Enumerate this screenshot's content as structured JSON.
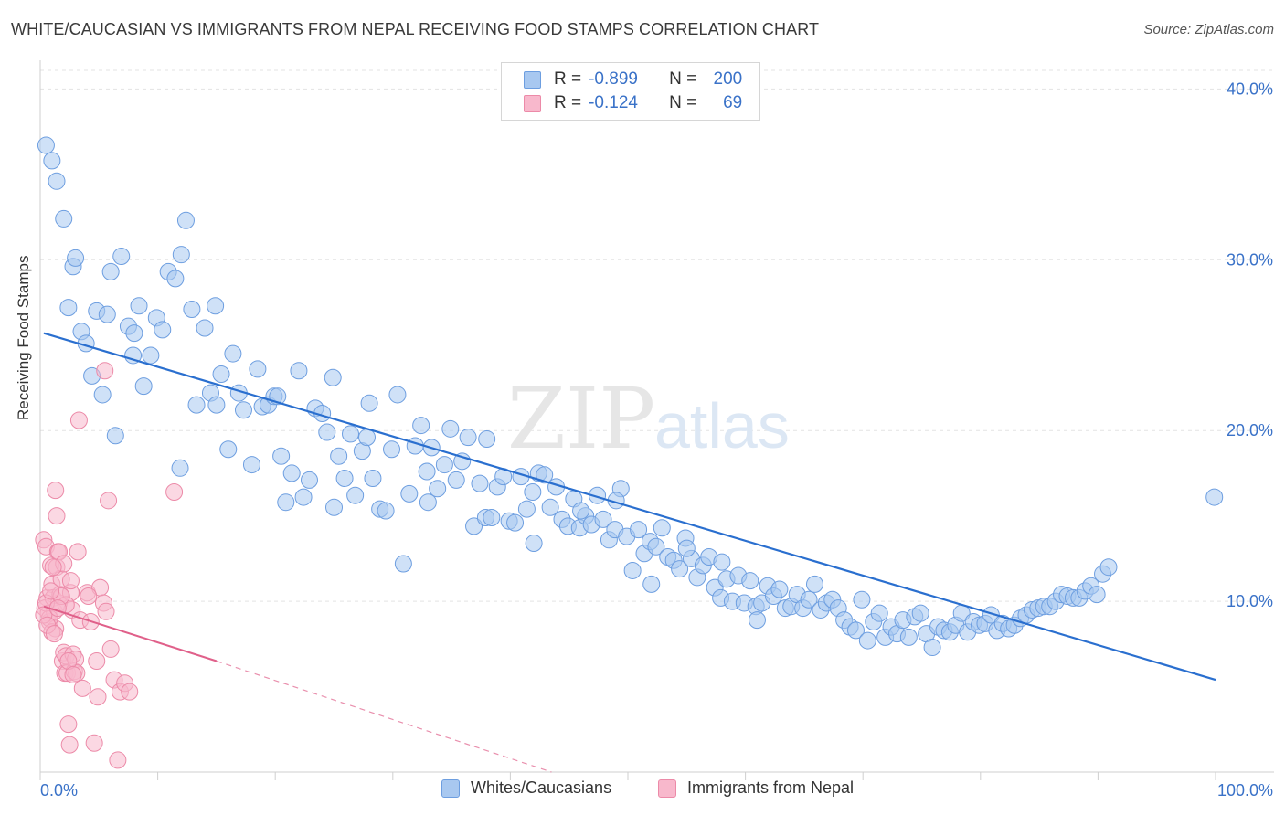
{
  "title": "WHITE/CAUCASIAN VS IMMIGRANTS FROM NEPAL RECEIVING FOOD STAMPS CORRELATION CHART",
  "source": "Source: ZipAtlas.com",
  "watermark": {
    "zip": "ZIP",
    "atlas": "atlas"
  },
  "colors": {
    "blue_fill": "#a8c8f0",
    "blue_stroke": "#6d9ee0",
    "blue_line": "#2a6fcf",
    "pink_fill": "#f8b8cc",
    "pink_stroke": "#ec8aa8",
    "pink_line": "#e0608a",
    "axis_text": "#3a72c8",
    "grid": "#e3e3e3"
  },
  "legend": {
    "rows": [
      {
        "r_label": "R =",
        "r_value": "-0.899",
        "n_label": "N =",
        "n_value": "200",
        "color": "#a8c8f0"
      },
      {
        "r_label": "R =",
        "r_value": "-0.124",
        "n_label": "N =",
        "n_value": "69",
        "color": "#f8b8cc"
      }
    ]
  },
  "bottom_legend": {
    "series1": "Whites/Caucasians",
    "series2": "Immigrants from Nepal"
  },
  "chart_data": {
    "type": "scatter",
    "ylabel": "Receiving Food Stamps",
    "xlabel": "",
    "xlim": [
      0,
      100
    ],
    "ylim": [
      0,
      42
    ],
    "x_tick_labels": {
      "0": "0.0%",
      "100": "100.0%"
    },
    "y_ticks": [
      10,
      20,
      30,
      40
    ],
    "y_tick_labels": [
      "10.0%",
      "20.0%",
      "30.0%",
      "40.0%"
    ],
    "grid": "horizontal dashed",
    "series": [
      {
        "name": "Whites/Caucasians",
        "trend": {
          "x": [
            0,
            100
          ],
          "y": [
            25.7,
            5.4
          ],
          "style": "solid"
        },
        "points": [
          [
            0.5,
            36.7
          ],
          [
            1,
            35.8
          ],
          [
            1.4,
            34.6
          ],
          [
            2,
            32.4
          ],
          [
            2.8,
            29.6
          ],
          [
            2.4,
            27.2
          ],
          [
            3.5,
            25.8
          ],
          [
            3.9,
            25.1
          ],
          [
            4.4,
            23.2
          ],
          [
            4.8,
            27.0
          ],
          [
            5.3,
            22.1
          ],
          [
            5.7,
            26.8
          ],
          [
            6.4,
            19.7
          ],
          [
            6.9,
            30.2
          ],
          [
            7.5,
            26.1
          ],
          [
            7.9,
            24.4
          ],
          [
            8.4,
            27.3
          ],
          [
            8.8,
            22.6
          ],
          [
            9.4,
            24.4
          ],
          [
            9.9,
            26.6
          ],
          [
            10.4,
            25.9
          ],
          [
            10.9,
            29.3
          ],
          [
            11.5,
            28.9
          ],
          [
            11.9,
            17.8
          ],
          [
            12.4,
            32.3
          ],
          [
            12.9,
            27.1
          ],
          [
            13.3,
            21.5
          ],
          [
            14.0,
            26.0
          ],
          [
            14.5,
            22.2
          ],
          [
            14.9,
            27.3
          ],
          [
            15.4,
            23.3
          ],
          [
            16.0,
            18.9
          ],
          [
            16.4,
            24.5
          ],
          [
            16.9,
            22.2
          ],
          [
            17.3,
            21.2
          ],
          [
            18.0,
            18.0
          ],
          [
            18.5,
            23.6
          ],
          [
            18.9,
            21.4
          ],
          [
            19.4,
            21.5
          ],
          [
            19.9,
            22.0
          ],
          [
            20.5,
            18.5
          ],
          [
            20.9,
            15.8
          ],
          [
            21.4,
            17.5
          ],
          [
            22.0,
            23.5
          ],
          [
            22.4,
            16.1
          ],
          [
            22.9,
            17.1
          ],
          [
            23.4,
            21.3
          ],
          [
            24.0,
            21.0
          ],
          [
            24.4,
            19.9
          ],
          [
            24.9,
            23.1
          ],
          [
            25.4,
            18.5
          ],
          [
            25.9,
            17.2
          ],
          [
            26.4,
            19.8
          ],
          [
            26.8,
            16.2
          ],
          [
            27.4,
            18.8
          ],
          [
            27.8,
            19.6
          ],
          [
            28.3,
            17.2
          ],
          [
            28.9,
            15.4
          ],
          [
            29.4,
            15.3
          ],
          [
            29.9,
            18.9
          ],
          [
            30.4,
            22.1
          ],
          [
            30.9,
            12.2
          ],
          [
            31.4,
            16.3
          ],
          [
            31.9,
            19.1
          ],
          [
            32.4,
            20.3
          ],
          [
            32.9,
            17.6
          ],
          [
            33.3,
            19.0
          ],
          [
            33.8,
            16.6
          ],
          [
            34.4,
            18.0
          ],
          [
            34.9,
            20.1
          ],
          [
            35.4,
            17.1
          ],
          [
            35.9,
            18.2
          ],
          [
            36.4,
            19.6
          ],
          [
            36.9,
            14.4
          ],
          [
            37.4,
            16.9
          ],
          [
            37.9,
            14.9
          ],
          [
            38.4,
            14.9
          ],
          [
            38.9,
            16.7
          ],
          [
            39.4,
            17.3
          ],
          [
            39.9,
            14.7
          ],
          [
            40.4,
            14.6
          ],
          [
            40.9,
            17.3
          ],
          [
            41.4,
            15.4
          ],
          [
            41.9,
            16.4
          ],
          [
            42.4,
            17.5
          ],
          [
            42.9,
            17.4
          ],
          [
            43.4,
            15.5
          ],
          [
            43.9,
            16.7
          ],
          [
            44.4,
            14.8
          ],
          [
            44.9,
            14.4
          ],
          [
            45.4,
            16.0
          ],
          [
            45.9,
            14.3
          ],
          [
            46.4,
            15.0
          ],
          [
            46.9,
            14.5
          ],
          [
            47.4,
            16.2
          ],
          [
            47.9,
            14.8
          ],
          [
            48.4,
            13.6
          ],
          [
            48.9,
            14.2
          ],
          [
            49.4,
            16.6
          ],
          [
            49.9,
            13.8
          ],
          [
            50.4,
            11.8
          ],
          [
            50.9,
            14.2
          ],
          [
            51.4,
            12.8
          ],
          [
            51.9,
            13.5
          ],
          [
            52.4,
            13.2
          ],
          [
            52.9,
            14.3
          ],
          [
            53.4,
            12.6
          ],
          [
            53.9,
            12.4
          ],
          [
            54.4,
            11.9
          ],
          [
            54.9,
            13.7
          ],
          [
            55.4,
            12.5
          ],
          [
            55.9,
            11.4
          ],
          [
            56.4,
            12.1
          ],
          [
            56.9,
            12.6
          ],
          [
            57.4,
            10.8
          ],
          [
            57.9,
            10.2
          ],
          [
            58.4,
            11.3
          ],
          [
            58.9,
            10.0
          ],
          [
            59.4,
            11.5
          ],
          [
            59.9,
            9.9
          ],
          [
            60.4,
            11.2
          ],
          [
            60.9,
            9.7
          ],
          [
            61.4,
            9.9
          ],
          [
            61.9,
            10.9
          ],
          [
            62.4,
            10.3
          ],
          [
            62.9,
            10.7
          ],
          [
            63.4,
            9.6
          ],
          [
            63.9,
            9.7
          ],
          [
            64.4,
            10.4
          ],
          [
            64.9,
            9.6
          ],
          [
            65.4,
            10.1
          ],
          [
            65.9,
            11.0
          ],
          [
            66.4,
            9.5
          ],
          [
            66.9,
            9.9
          ],
          [
            67.4,
            10.1
          ],
          [
            67.9,
            9.6
          ],
          [
            68.4,
            8.9
          ],
          [
            68.9,
            8.5
          ],
          [
            69.4,
            8.3
          ],
          [
            69.9,
            10.1
          ],
          [
            70.4,
            7.7
          ],
          [
            70.9,
            8.8
          ],
          [
            71.4,
            9.3
          ],
          [
            71.9,
            7.9
          ],
          [
            72.4,
            8.5
          ],
          [
            72.9,
            8.1
          ],
          [
            73.4,
            8.9
          ],
          [
            73.9,
            7.9
          ],
          [
            74.4,
            9.1
          ],
          [
            74.9,
            9.3
          ],
          [
            75.4,
            8.1
          ],
          [
            75.9,
            7.3
          ],
          [
            76.4,
            8.5
          ],
          [
            76.9,
            8.3
          ],
          [
            77.4,
            8.2
          ],
          [
            77.9,
            8.6
          ],
          [
            78.4,
            9.3
          ],
          [
            78.9,
            8.2
          ],
          [
            79.4,
            8.8
          ],
          [
            79.9,
            8.6
          ],
          [
            80.4,
            8.7
          ],
          [
            80.9,
            9.2
          ],
          [
            81.4,
            8.3
          ],
          [
            81.9,
            8.7
          ],
          [
            82.4,
            8.4
          ],
          [
            82.9,
            8.6
          ],
          [
            83.4,
            9.0
          ],
          [
            83.9,
            9.2
          ],
          [
            84.4,
            9.5
          ],
          [
            84.9,
            9.6
          ],
          [
            85.4,
            9.7
          ],
          [
            85.9,
            9.7
          ],
          [
            86.4,
            10.0
          ],
          [
            86.9,
            10.4
          ],
          [
            87.4,
            10.3
          ],
          [
            87.9,
            10.2
          ],
          [
            88.4,
            10.2
          ],
          [
            88.9,
            10.6
          ],
          [
            89.4,
            10.9
          ],
          [
            90.4,
            11.6
          ],
          [
            89.9,
            10.4
          ],
          [
            90.9,
            12.0
          ],
          [
            99.9,
            16.1
          ],
          [
            3.0,
            30.1
          ],
          [
            6.0,
            29.3
          ],
          [
            8.0,
            25.7
          ],
          [
            12.0,
            30.3
          ],
          [
            15.0,
            21.5
          ],
          [
            20.2,
            22.0
          ],
          [
            25.0,
            15.5
          ],
          [
            28.0,
            21.6
          ],
          [
            33.0,
            15.8
          ],
          [
            38.0,
            19.5
          ],
          [
            42.0,
            13.4
          ],
          [
            46.0,
            15.3
          ],
          [
            49.0,
            15.9
          ],
          [
            52.0,
            11.0
          ],
          [
            55.0,
            13.1
          ],
          [
            58.0,
            12.3
          ],
          [
            61.0,
            8.9
          ]
        ]
      },
      {
        "name": "Immigrants from Nepal",
        "trend": {
          "x": [
            0,
            15
          ],
          "y": [
            9.7,
            6.5
          ],
          "style": "solid",
          "extended": {
            "x": [
              15,
              43.5
            ],
            "y": [
              6.5,
              0
            ]
          }
        },
        "points": [
          [
            0.3,
            13.6
          ],
          [
            0.5,
            13.2
          ],
          [
            0.6,
            10.2
          ],
          [
            0.4,
            9.6
          ],
          [
            0.7,
            9.3
          ],
          [
            0.8,
            8.8
          ],
          [
            0.9,
            12.1
          ],
          [
            1.0,
            11.0
          ],
          [
            1.1,
            10.2
          ],
          [
            1.2,
            9.4
          ],
          [
            1.3,
            8.4
          ],
          [
            1.4,
            12.0
          ],
          [
            1.5,
            12.9
          ],
          [
            1.6,
            9.9
          ],
          [
            1.7,
            10.4
          ],
          [
            1.8,
            11.3
          ],
          [
            1.9,
            6.5
          ],
          [
            2.0,
            7.0
          ],
          [
            2.1,
            5.8
          ],
          [
            2.2,
            6.8
          ],
          [
            2.3,
            5.8
          ],
          [
            2.4,
            2.8
          ],
          [
            2.5,
            1.6
          ],
          [
            2.6,
            10.5
          ],
          [
            2.7,
            9.5
          ],
          [
            2.8,
            6.9
          ],
          [
            2.9,
            5.9
          ],
          [
            3.0,
            6.6
          ],
          [
            3.2,
            12.9
          ],
          [
            3.4,
            8.9
          ],
          [
            3.6,
            4.9
          ],
          [
            4.0,
            10.5
          ],
          [
            4.3,
            8.8
          ],
          [
            4.6,
            1.7
          ],
          [
            4.8,
            6.5
          ],
          [
            4.9,
            4.4
          ],
          [
            5.1,
            10.8
          ],
          [
            5.4,
            9.9
          ],
          [
            5.6,
            9.4
          ],
          [
            5.8,
            15.9
          ],
          [
            6.0,
            7.2
          ],
          [
            6.3,
            5.4
          ],
          [
            6.6,
            0.7
          ],
          [
            6.8,
            4.7
          ],
          [
            7.2,
            5.2
          ],
          [
            7.6,
            4.7
          ],
          [
            3.3,
            20.6
          ],
          [
            5.5,
            23.5
          ],
          [
            11.4,
            16.4
          ],
          [
            1.3,
            16.5
          ],
          [
            1.4,
            15.0
          ],
          [
            0.8,
            9.0
          ],
          [
            1.0,
            8.2
          ],
          [
            1.6,
            12.9
          ],
          [
            0.5,
            9.9
          ],
          [
            2.0,
            12.2
          ],
          [
            2.2,
            9.8
          ],
          [
            0.3,
            9.2
          ],
          [
            0.6,
            8.6
          ],
          [
            1.2,
            8.1
          ],
          [
            2.6,
            11.2
          ],
          [
            1.8,
            10.3
          ],
          [
            1.1,
            12.0
          ],
          [
            0.9,
            10.6
          ],
          [
            3.1,
            5.8
          ],
          [
            2.4,
            6.5
          ],
          [
            1.5,
            9.6
          ],
          [
            2.8,
            5.7
          ],
          [
            4.1,
            10.3
          ]
        ]
      }
    ]
  }
}
